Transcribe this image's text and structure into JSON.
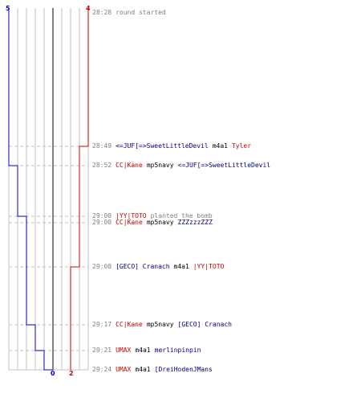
{
  "scores": {
    "blue_start": "5",
    "red_start": "4",
    "blue_end": "0",
    "red_end": "2"
  },
  "colors": {
    "blue_team": "#0000cc",
    "red_team": "#cc0000",
    "grid": "#c0c0c0",
    "divider": "#808080",
    "time_text": "#808080"
  },
  "events": [
    {
      "time": "28:28",
      "text": "round started"
    },
    {
      "time": "28:49",
      "actor": "<=JUF[=>SweetLittleDevil",
      "actor_team": "blue",
      "weapon": "m4a1",
      "victim": "Tyler",
      "victim_team": "red"
    },
    {
      "time": "28:52",
      "actor": "CC|Kane",
      "actor_team": "red",
      "weapon": "mp5navy",
      "victim": "<=JUF[=>SweetLittleDevil",
      "victim_team": "blue"
    },
    {
      "time": "29:00",
      "actor": "|YY|TOTO",
      "actor_team": "red",
      "text": "planted the bomb"
    },
    {
      "time": "29:00",
      "actor": "CC|Kane",
      "actor_team": "red",
      "weapon": "mp5navy",
      "victim": "ZZZzzzZZZ",
      "victim_team": "blue"
    },
    {
      "time": "29:08",
      "actor": "[GECO] Cranach",
      "actor_team": "blue",
      "weapon": "m4a1",
      "victim": "|YY|TOTO",
      "victim_team": "red"
    },
    {
      "time": "29:17",
      "actor": "CC|Kane",
      "actor_team": "red",
      "weapon": "mp5navy",
      "victim": "[GECO] Cranach",
      "victim_team": "blue"
    },
    {
      "time": "29:21",
      "actor": "UMAX",
      "actor_team": "red",
      "weapon": "m4a1",
      "victim": "merlinpinpin",
      "victim_team": "blue"
    },
    {
      "time": "29:24",
      "actor": "UMAX",
      "actor_team": "red",
      "weapon": "m4a1",
      "victim": "[DreiHodenJMans",
      "victim_team": "blue"
    }
  ]
}
